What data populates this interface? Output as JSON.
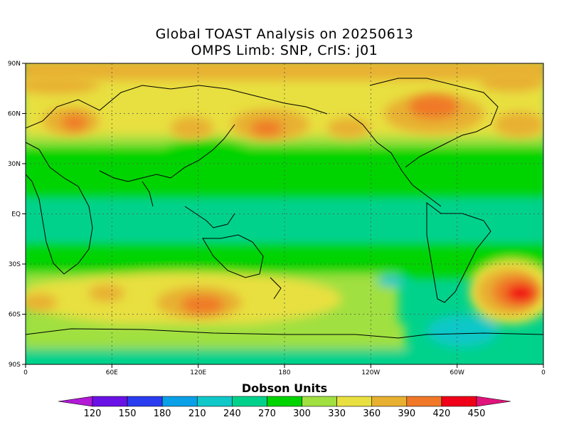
{
  "title": {
    "line1": "Global TOAST Analysis on 20250613",
    "line2": "OMPS Limb: SNP,  CrIS: j01"
  },
  "map": {
    "lat_ticks": [
      "90N",
      "60N",
      "30N",
      "EQ",
      "30S",
      "60S",
      "90S"
    ],
    "lon_ticks": [
      "0",
      "60E",
      "120E",
      "180",
      "120W",
      "60W",
      "0"
    ],
    "grid": "dotted"
  },
  "colorbar": {
    "label": "Dobson Units",
    "levels": [
      120,
      150,
      180,
      210,
      240,
      270,
      300,
      330,
      360,
      390,
      420,
      450
    ],
    "colors": [
      "#b21ad8",
      "#6a12e6",
      "#2a3cf0",
      "#0aa0e8",
      "#10c8c8",
      "#00d28c",
      "#00d400",
      "#a0e040",
      "#e8e040",
      "#e8b030",
      "#f07828",
      "#f00018",
      "#e0147c"
    ]
  }
}
